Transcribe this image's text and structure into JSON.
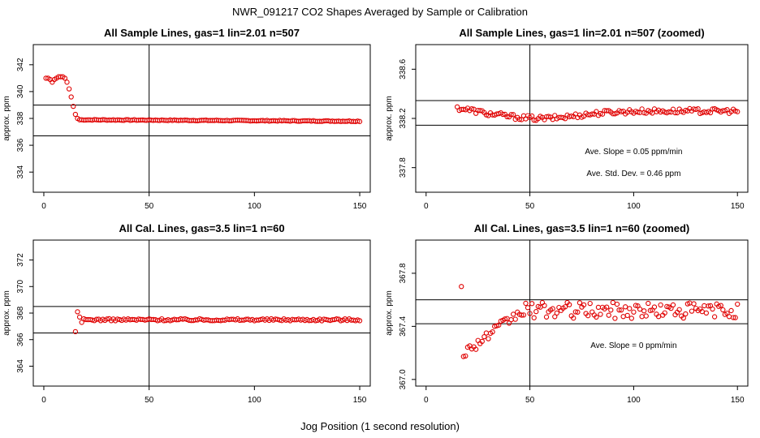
{
  "figure": {
    "title": "NWR_091217  CO2 Shapes Averaged by Sample or Calibration",
    "xlabel": "Jog Position (1 second resolution)"
  },
  "chart_data": [
    {
      "type": "scatter",
      "title": "All Sample Lines, gas=1 lin=2.01 n=507",
      "ylabel": "approx. ppm",
      "xlim": [
        -5,
        155
      ],
      "ylim": [
        332.5,
        343.5
      ],
      "xticks": [
        0,
        50,
        100,
        150
      ],
      "yticks": [
        334,
        336,
        338,
        340,
        342
      ],
      "xtick_labels": [
        "0",
        "50",
        "100",
        "150"
      ],
      "ytick_labels": [
        "334",
        "336",
        "338",
        "340",
        "342"
      ],
      "hlines": [
        339.0,
        336.7
      ],
      "vline": 50,
      "annotations": [],
      "series": {
        "name": "sample",
        "segments": [
          {
            "x_start": 1,
            "x_end": 12,
            "values": [
              341.0,
              341.0,
              340.9,
              340.7,
              340.9,
              341.0,
              341.1,
              341.1,
              341.1,
              341.0,
              340.7,
              340.2
            ]
          },
          {
            "x_start": 13,
            "x_end": 16,
            "values": [
              339.6,
              338.9,
              338.3,
              338.0
            ]
          },
          {
            "x_start": 17,
            "x_end": 150,
            "base": 337.9,
            "drift": -0.0008,
            "noise": 0.03
          }
        ]
      }
    },
    {
      "type": "scatter",
      "title": "All Sample Lines, gas=1 lin=2.01 n=507 (zoomed)",
      "ylabel": "approx. ppm",
      "xlim": [
        -5,
        155
      ],
      "ylim": [
        337.6,
        338.8
      ],
      "xticks": [
        0,
        50,
        100,
        150
      ],
      "yticks": [
        337.8,
        338.2,
        338.6
      ],
      "xtick_labels": [
        "0",
        "50",
        "100",
        "150"
      ],
      "ytick_labels": [
        "337.8",
        "338.2",
        "338.6"
      ],
      "hlines": [
        338.345,
        338.145
      ],
      "vline": 50,
      "annotations": [
        "Ave. Slope =  0.05  ppm/min",
        "Ave. Std. Dev. =  0.46  ppm"
      ],
      "series": {
        "name": "sample-zoom",
        "segments": [
          {
            "x_start": 15,
            "x_end": 150,
            "base": 338.26,
            "shape": "dip",
            "dip_center": 55,
            "dip_depth": 0.06,
            "noise": 0.02
          }
        ]
      }
    },
    {
      "type": "scatter",
      "title": "All Cal. Lines, gas=3.5 lin=1 n=60",
      "ylabel": "approx. ppm",
      "xlim": [
        -5,
        155
      ],
      "ylim": [
        362.5,
        373.5
      ],
      "xticks": [
        0,
        50,
        100,
        150
      ],
      "yticks": [
        364,
        366,
        368,
        370,
        372
      ],
      "xtick_labels": [
        "0",
        "50",
        "100",
        "150"
      ],
      "ytick_labels": [
        "364",
        "366",
        "368",
        "370",
        "372"
      ],
      "hlines": [
        368.5,
        366.5
      ],
      "vline": 50,
      "annotations": [],
      "series": {
        "name": "cal",
        "segments": [
          {
            "x_start": 15,
            "x_end": 18,
            "values": [
              366.6,
              368.1,
              367.7,
              367.3
            ]
          },
          {
            "x_start": 19,
            "x_end": 150,
            "base": 367.5,
            "noise": 0.08
          }
        ]
      }
    },
    {
      "type": "scatter",
      "title": "All Cal. Lines, gas=3.5 lin=1 n=60 (zoomed)",
      "ylabel": "approx. ppm",
      "xlim": [
        -5,
        155
      ],
      "ylim": [
        366.95,
        368.05
      ],
      "xticks": [
        0,
        50,
        100,
        150
      ],
      "yticks": [
        367.0,
        367.4,
        367.8
      ],
      "xtick_labels": [
        "0",
        "50",
        "100",
        "150"
      ],
      "ytick_labels": [
        "367.0",
        "367.4",
        "367.8"
      ],
      "hlines": [
        367.6,
        367.42
      ],
      "vline": 50,
      "annotations": [
        "Ave. Slope =  0  ppm/min"
      ],
      "series": {
        "name": "cal-zoom",
        "segments": [
          {
            "x_start": 17,
            "x_end": 17,
            "values": [
              367.7
            ]
          },
          {
            "x_start": 18,
            "x_end": 45,
            "ramp_from": 367.2,
            "ramp_to": 367.5,
            "noise": 0.04
          },
          {
            "x_start": 46,
            "x_end": 150,
            "base": 367.52,
            "noise": 0.06
          }
        ]
      }
    }
  ],
  "colors": {
    "points": "#e00000",
    "axes": "#000000"
  }
}
